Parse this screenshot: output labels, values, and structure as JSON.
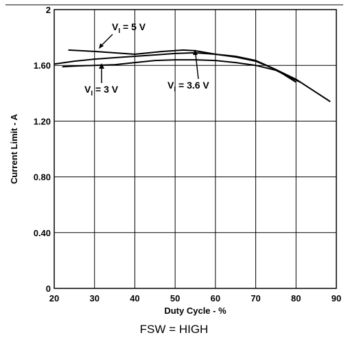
{
  "chart_data": {
    "type": "line",
    "xlabel": "Duty Cycle - %",
    "ylabel": "Current Limit - A",
    "xlim": [
      20,
      90
    ],
    "ylim": [
      0,
      2
    ],
    "x_ticks": [
      "20",
      "30",
      "40",
      "50",
      "60",
      "70",
      "80",
      "90"
    ],
    "y_ticks": [
      {
        "value": 0,
        "label": "0"
      },
      {
        "value": 0.4,
        "label": "0.40"
      },
      {
        "value": 0.8,
        "label": "0.80"
      },
      {
        "value": 1.2,
        "label": "1.20"
      },
      {
        "value": 1.6,
        "label": "1.60"
      },
      {
        "value": 2,
        "label": "2"
      }
    ],
    "grid": true,
    "series": [
      {
        "name": "VI = 5 V",
        "x": [
          23.5,
          30,
          40,
          47,
          52,
          55,
          60,
          65,
          70,
          75,
          80,
          88.5
        ],
        "y": [
          1.71,
          1.7,
          1.68,
          1.7,
          1.71,
          1.705,
          1.68,
          1.66,
          1.63,
          1.57,
          1.5,
          1.34
        ]
      },
      {
        "name": "VI = 3.6 V",
        "x": [
          20,
          25,
          30,
          35,
          40,
          45,
          50,
          55,
          60,
          65,
          70,
          75,
          80
        ],
        "y": [
          1.61,
          1.63,
          1.645,
          1.655,
          1.665,
          1.675,
          1.685,
          1.69,
          1.68,
          1.665,
          1.635,
          1.57,
          1.48
        ]
      },
      {
        "name": "VI = 3 V",
        "x": [
          22,
          25,
          30,
          35,
          40,
          45,
          50,
          55,
          60,
          65,
          70,
          75,
          81
        ],
        "y": [
          1.59,
          1.595,
          1.6,
          1.605,
          1.62,
          1.635,
          1.64,
          1.64,
          1.635,
          1.62,
          1.6,
          1.565,
          1.48
        ]
      }
    ],
    "annotations": [
      {
        "main": "V",
        "sub": "I",
        "rest": " = 5 V"
      },
      {
        "main": "V",
        "sub": "I",
        "rest": " = 3 V"
      },
      {
        "main": "V",
        "sub": "I",
        "rest": " = 3.6 V"
      }
    ]
  },
  "caption": "FSW = HIGH"
}
